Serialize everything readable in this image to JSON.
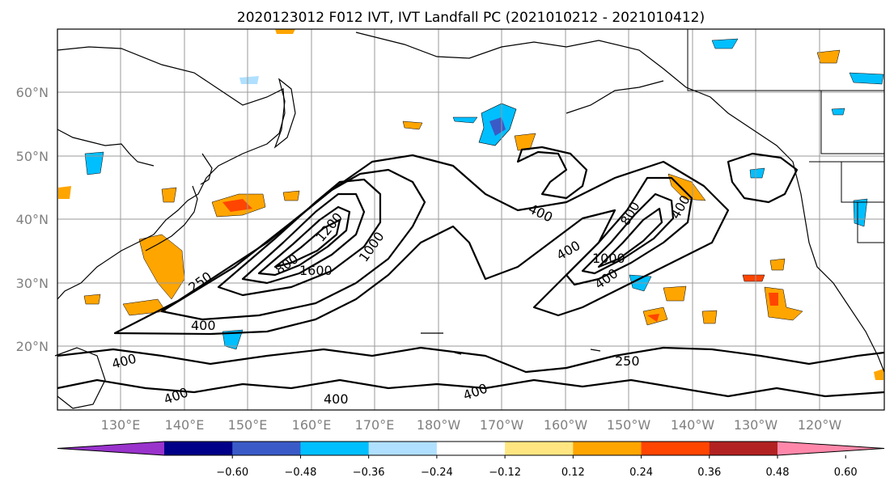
{
  "title": "2020123012 F012 IVT, IVT Landfall PC (2021010212 - 2021010412)",
  "lat_labels": [
    "60°N",
    "50°N",
    "40°N",
    "30°N",
    "20°N"
  ],
  "lon_labels": [
    "130°E",
    "140°E",
    "150°E",
    "160°E",
    "170°E",
    "180°W",
    "170°W",
    "160°W",
    "150°W",
    "140°W",
    "130°W",
    "120°W"
  ],
  "contour_labels": [
    "250",
    "400",
    "800",
    "1200",
    "1600",
    "1000",
    "400",
    "400",
    "800",
    "1000",
    "400",
    "400",
    "250",
    "400",
    "400",
    "400",
    "400"
  ],
  "colorbar": {
    "ticks": [
      "−0.60",
      "−0.48",
      "−0.36",
      "−0.24",
      "−0.12",
      "0.12",
      "0.24",
      "0.36",
      "0.48",
      "0.60"
    ],
    "colors": [
      "#9933cc",
      "#000088",
      "#3a5bc7",
      "#00bfff",
      "#b0e0ff",
      "#ffffff",
      "#ffe680",
      "#ffa500",
      "#ff4500",
      "#b22222",
      "#ff88aa"
    ]
  },
  "map": {
    "extent_lon": [
      120,
      -115
    ],
    "extent_lat": [
      10,
      70
    ],
    "ivt_contour_levels": [
      250,
      400,
      800,
      1000,
      1200,
      1600
    ]
  }
}
